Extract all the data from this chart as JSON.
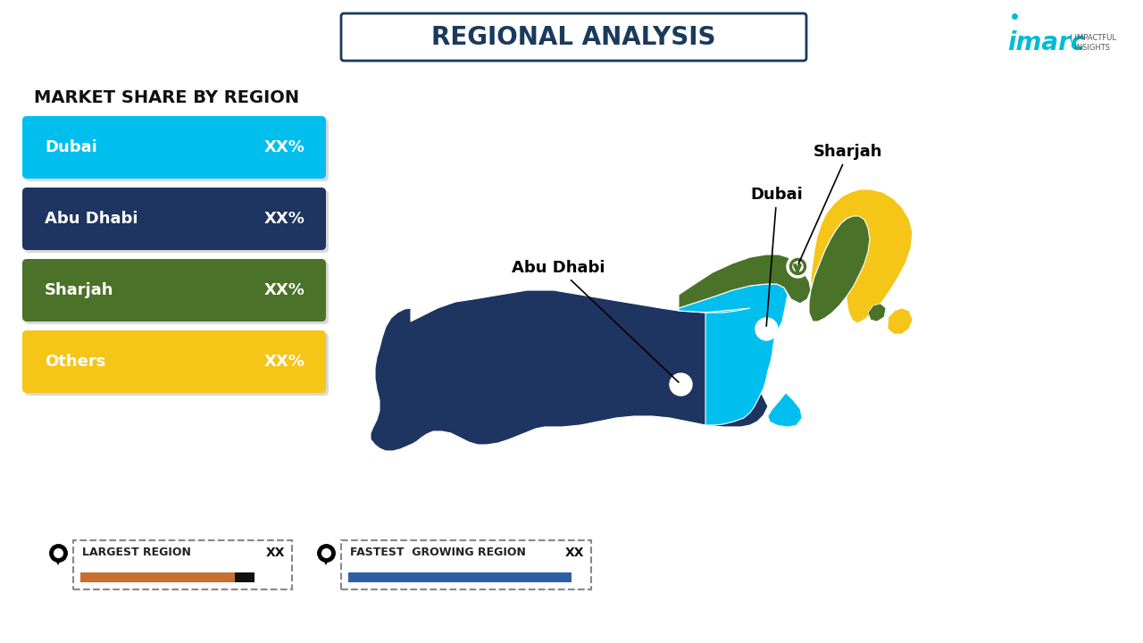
{
  "title": "REGIONAL ANALYSIS",
  "title_box_edgecolor": "#1a3a5c",
  "subtitle": "MARKET SHARE BY REGION",
  "regions": [
    "Dubai",
    "Abu Dhabi",
    "Sharjah",
    "Others"
  ],
  "region_values": [
    "XX%",
    "XX%",
    "XX%",
    "XX%"
  ],
  "region_colors": [
    "#00bfee",
    "#1e3461",
    "#4a7228",
    "#f5c518"
  ],
  "bg_color": "#ffffff",
  "map_color_dubai": "#00bfee",
  "map_color_abudhabi": "#1e3461",
  "map_color_sharjah": "#4a7228",
  "map_color_others": "#f5c518",
  "largest_region_label": "LARGEST REGION",
  "fastest_growing_label": "FASTEST  GROWING REGION",
  "largest_region_value": "XX",
  "fastest_growing_value": "XX",
  "largest_bar_color": "#c87030",
  "largest_bar_end_color": "#111111",
  "fastest_bar_color": "#2d5fa6",
  "imarc_color": "#00bcd4",
  "pin_color": "#1a3a5c",
  "label_fontsize": 14,
  "bar_label_fontsize": 13
}
